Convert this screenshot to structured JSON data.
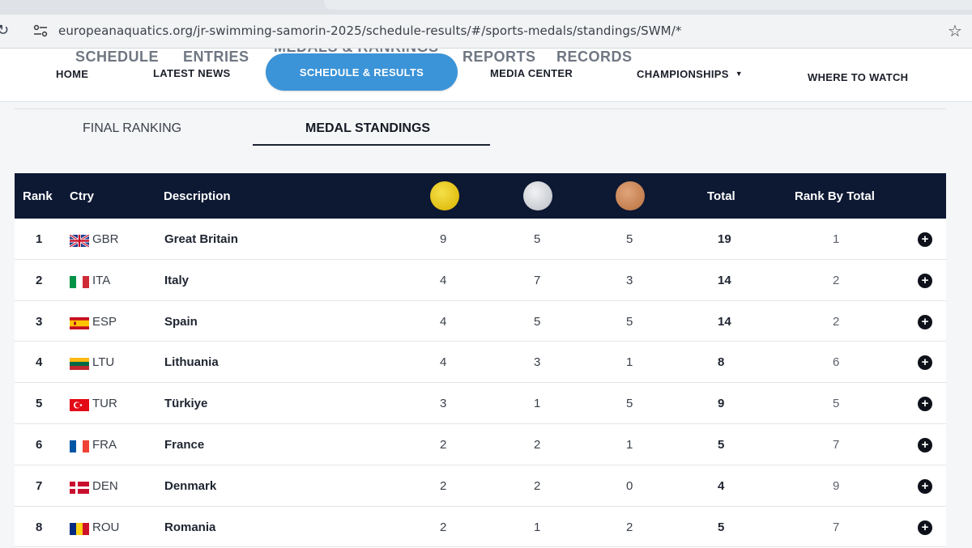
{
  "browser": {
    "url": "europeanaquatics.org/jr-swimming-samorin-2025/schedule-results/#/sports-medals/standings/SWM/*"
  },
  "subnav": {
    "items": [
      "SCHEDULE",
      "ENTRIES",
      "MEDALS & RANKINGS",
      "REPORTS",
      "RECORDS"
    ]
  },
  "mainnav": {
    "home": "HOME",
    "latest_news": "LATEST NEWS",
    "schedule_results": "SCHEDULE & RESULTS",
    "media_center": "MEDIA CENTER",
    "championships": "CHAMPIONSHIPS",
    "where_to_watch": "WHERE TO WATCH"
  },
  "tabs": {
    "final_ranking": "FINAL RANKING",
    "medal_standings": "MEDAL STANDINGS"
  },
  "table": {
    "headers": {
      "rank": "Rank",
      "ctry": "Ctry",
      "description": "Description",
      "total": "Total",
      "rank_by_total": "Rank By Total"
    },
    "medal_colors": {
      "gold": "#e4c21a",
      "silver": "#d6d8dc",
      "bronze": "#cc8a5a"
    },
    "rows": [
      {
        "rank": "1",
        "code": "GBR",
        "name": "Great Britain",
        "gold": "9",
        "silver": "5",
        "bronze": "5",
        "total": "19",
        "rank_by_total": "1"
      },
      {
        "rank": "2",
        "code": "ITA",
        "name": "Italy",
        "gold": "4",
        "silver": "7",
        "bronze": "3",
        "total": "14",
        "rank_by_total": "2"
      },
      {
        "rank": "3",
        "code": "ESP",
        "name": "Spain",
        "gold": "4",
        "silver": "5",
        "bronze": "5",
        "total": "14",
        "rank_by_total": "2"
      },
      {
        "rank": "4",
        "code": "LTU",
        "name": "Lithuania",
        "gold": "4",
        "silver": "3",
        "bronze": "1",
        "total": "8",
        "rank_by_total": "6"
      },
      {
        "rank": "5",
        "code": "TUR",
        "name": "Türkiye",
        "gold": "3",
        "silver": "1",
        "bronze": "5",
        "total": "9",
        "rank_by_total": "5"
      },
      {
        "rank": "6",
        "code": "FRA",
        "name": "France",
        "gold": "2",
        "silver": "2",
        "bronze": "1",
        "total": "5",
        "rank_by_total": "7"
      },
      {
        "rank": "7",
        "code": "DEN",
        "name": "Denmark",
        "gold": "2",
        "silver": "2",
        "bronze": "0",
        "total": "4",
        "rank_by_total": "9"
      },
      {
        "rank": "8",
        "code": "ROU",
        "name": "Romania",
        "gold": "2",
        "silver": "1",
        "bronze": "2",
        "total": "5",
        "rank_by_total": "7"
      }
    ]
  },
  "icons": {
    "reload": "reload-icon",
    "site_info": "site-info-icon",
    "bookmark": "star-icon",
    "expand": "plus-circle-icon",
    "dropdown": "chevron-down-icon"
  }
}
